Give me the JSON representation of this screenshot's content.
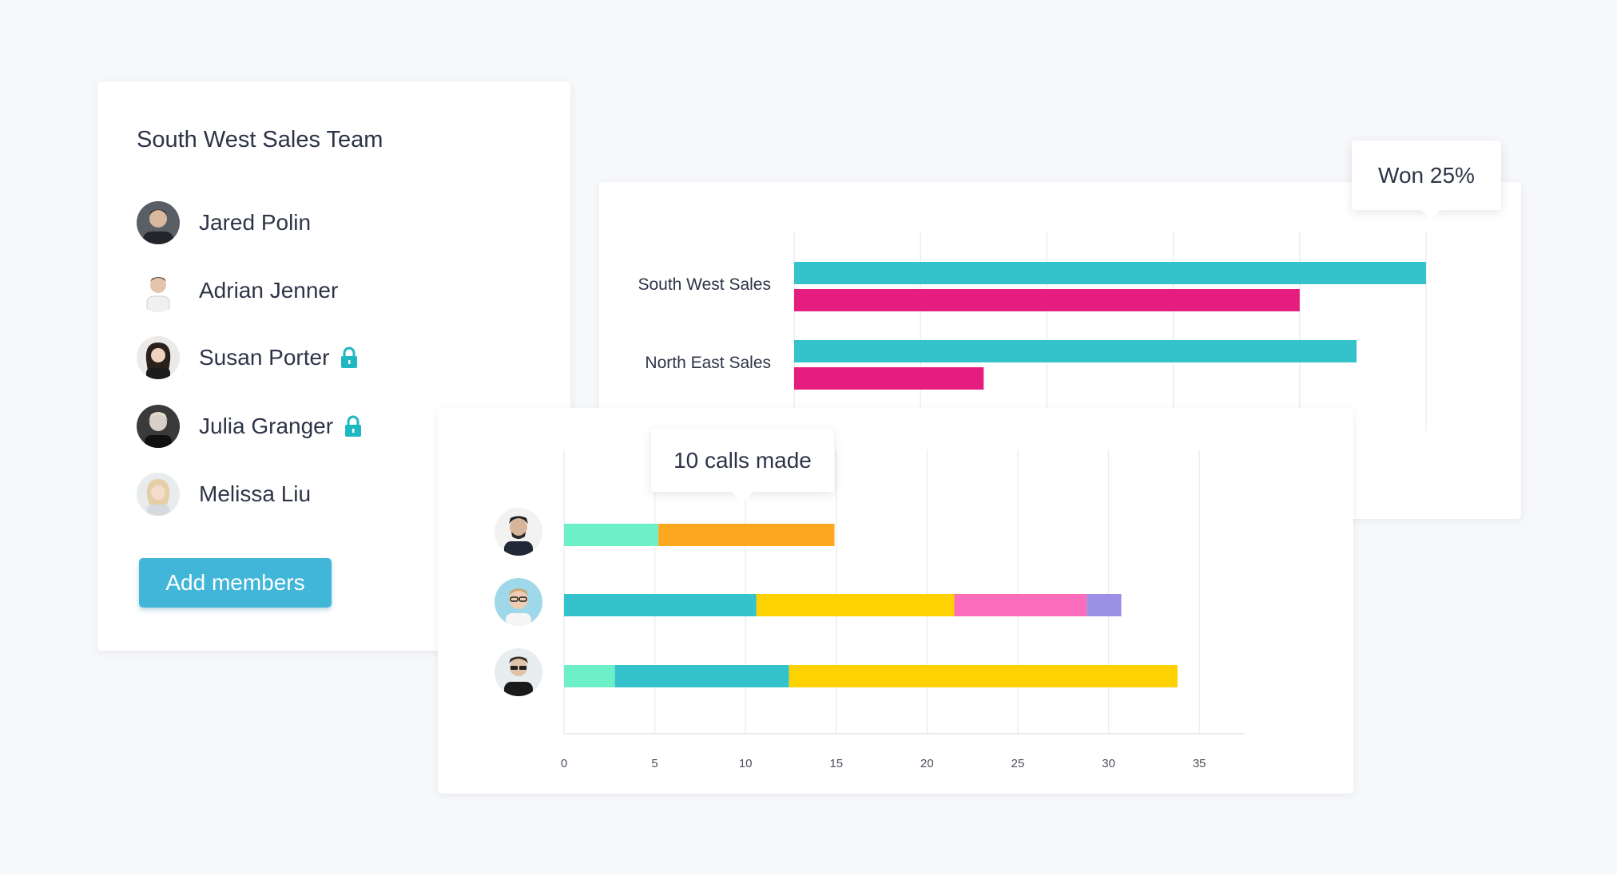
{
  "team": {
    "title": "South West Sales Team",
    "members": [
      {
        "name": "Jared Polin",
        "locked": false
      },
      {
        "name": "Adrian Jenner",
        "locked": false
      },
      {
        "name": "Susan Porter",
        "locked": true
      },
      {
        "name": "Julia Granger",
        "locked": true
      },
      {
        "name": "Melissa Liu",
        "locked": false
      }
    ],
    "add_button": "Add members"
  },
  "colors": {
    "teal": "#35c3cb",
    "magenta": "#e51d7e",
    "mint": "#6df0c8",
    "orange": "#fca71d",
    "yellow": "#fed100",
    "pink": "#fb6dbb",
    "lavender": "#9b8fe6",
    "button": "#42b6d9",
    "lock": "#1fb8c2"
  },
  "icons": {
    "lock": "lock-icon"
  },
  "chart_data": [
    {
      "type": "bar",
      "orientation": "horizontal",
      "categories": [
        "South West Sales",
        "North East Sales"
      ],
      "series": [
        {
          "color": "#35c3cb",
          "values": [
            5,
            4.45
          ]
        },
        {
          "color": "#e51d7e",
          "values": [
            4,
            1.5
          ]
        }
      ],
      "xlim": [
        0,
        5
      ],
      "grid": true,
      "tooltip": "Won 25%"
    },
    {
      "type": "bar",
      "orientation": "horizontal",
      "stacked": true,
      "categories": [
        "rep-1",
        "rep-2",
        "rep-3"
      ],
      "x_ticks": [
        "0",
        "5",
        "10",
        "15",
        "20",
        "25",
        "30",
        "35"
      ],
      "xlim": [
        0,
        37.5
      ],
      "rows": [
        {
          "segments": [
            {
              "value": 5.2,
              "color": "#6df0c8"
            },
            {
              "value": 9.7,
              "color": "#fca71d"
            }
          ]
        },
        {
          "segments": [
            {
              "value": 10.6,
              "color": "#35c3cb"
            },
            {
              "value": 10.9,
              "color": "#fed100"
            },
            {
              "value": 7.3,
              "color": "#fb6dbb"
            },
            {
              "value": 1.9,
              "color": "#9b8fe6"
            }
          ]
        },
        {
          "segments": [
            {
              "value": 2.8,
              "color": "#6df0c8"
            },
            {
              "value": 9.6,
              "color": "#35c3cb"
            },
            {
              "value": 21.4,
              "color": "#fed100"
            }
          ]
        }
      ],
      "grid": true,
      "tooltip": "10 calls made"
    }
  ]
}
